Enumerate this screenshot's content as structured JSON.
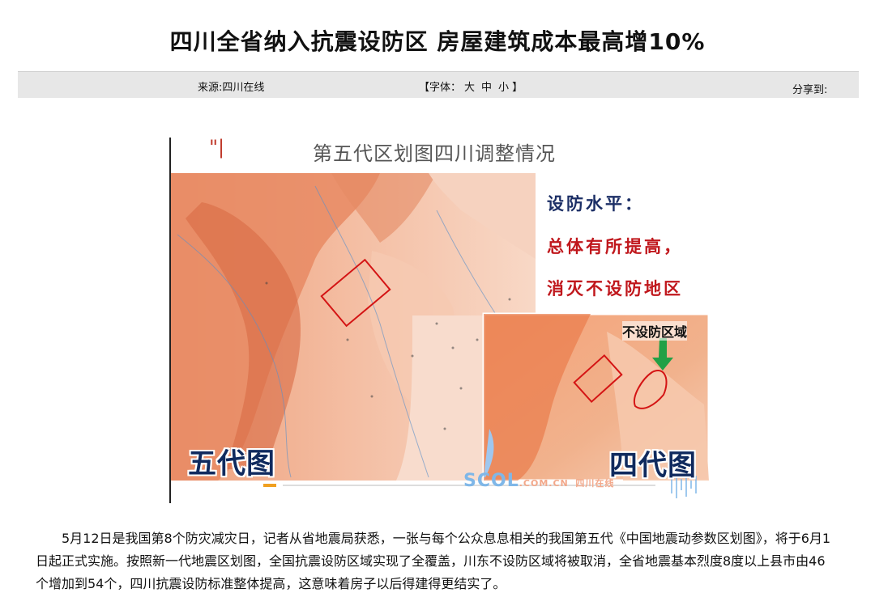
{
  "title": "四川全省纳入抗震设防区 房屋建筑成本最高增10%",
  "info": {
    "source": "来源:四川在线",
    "font_prefix": "【字体：",
    "font_sizes": [
      "大",
      "中",
      "小"
    ],
    "font_suffix": "】",
    "share": "分享到:"
  },
  "figure": {
    "title": "第五代区划图四川调整情况",
    "mark": "\"|",
    "callouts": [
      "设防水平：",
      "总体有所提高，",
      "消灭不设防地区"
    ],
    "no_defense_label": "不设防区域",
    "label_fifth": "五代图",
    "label_fourth": "四代图",
    "watermark": "SCOL",
    "watermark_sub": "四川在线",
    "watermark_domain": ".COM.CN"
  },
  "article": "5月12日是我国第8个防灾减灾日，记者从省地震局获悉，一张与每个公众息息相关的我国第五代《中国地震动参数区划图》，将于6月1日起正式实施。按照新一代地震区划图，全国抗震设防区域实现了全覆盖，川东不设防区域将被取消，全省地震基本烈度8度以上县市由46个增加到54个，四川抗震设防标准整体提高，这意味着房子以后得建得更结实了。",
  "colors": {
    "map_dark": "#e07850",
    "map_mid": "#f0a483",
    "map_light": "#f7d2bd",
    "callout_red": "#c0171c",
    "callout_blue": "#1c2f66"
  }
}
